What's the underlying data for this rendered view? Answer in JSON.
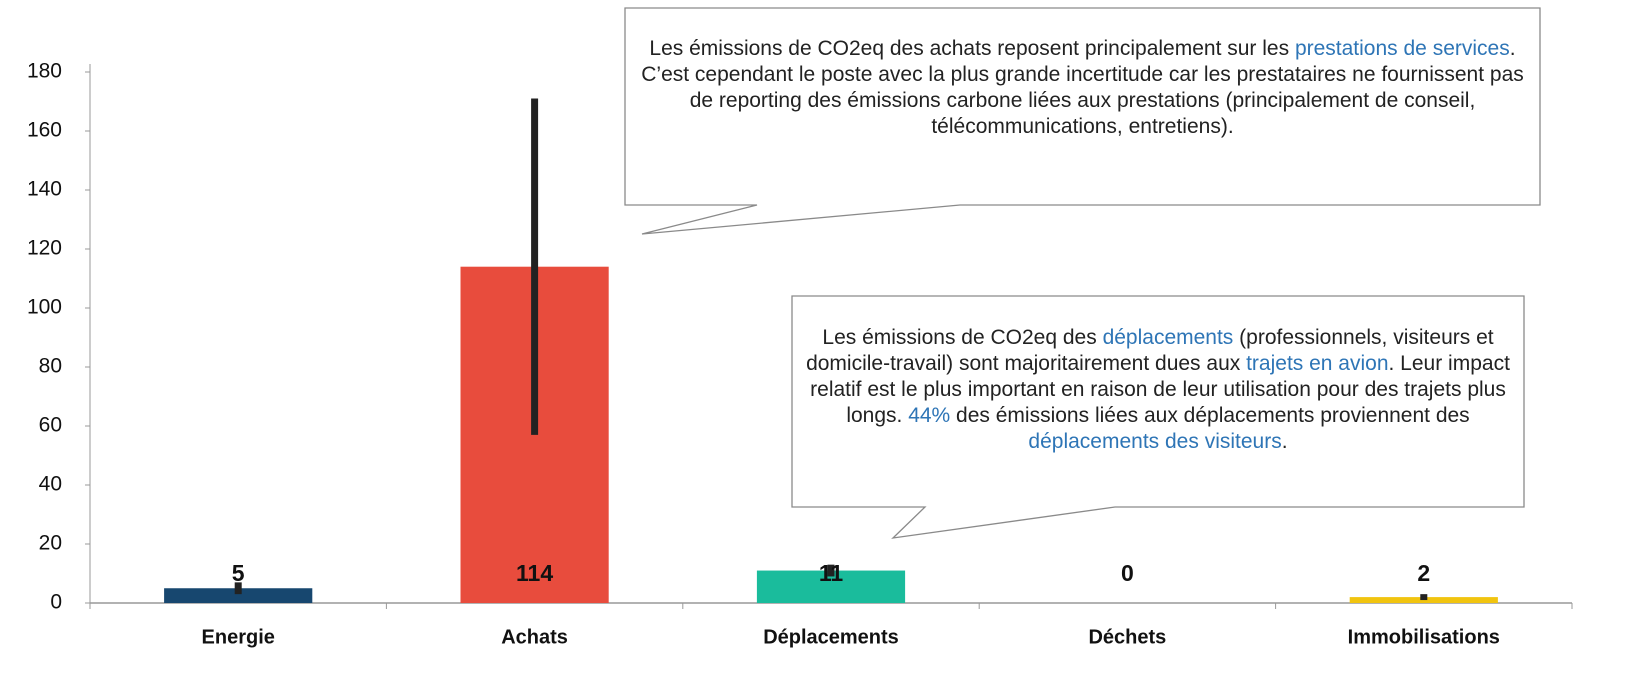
{
  "chart_data": {
    "type": "bar",
    "categories": [
      "Energie",
      "Achats",
      "Déplacements",
      "Déchets",
      "Immobilisations"
    ],
    "values": [
      5,
      114,
      11,
      0,
      2
    ],
    "errors": [
      2,
      57,
      2,
      0,
      1
    ],
    "colors": [
      "#17476f",
      "#e84c3d",
      "#1abc9c",
      "#999999",
      "#f1c40f"
    ],
    "error_color": "#222222",
    "ylim": [
      0,
      180
    ],
    "yticks": [
      0,
      20,
      40,
      60,
      80,
      100,
      120,
      140,
      160,
      180
    ],
    "annotations": [
      {
        "segments": [
          {
            "text": "Les émissions de CO2eq des achats reposent principalement sur les "
          },
          {
            "text": "prestations de services",
            "color": "#2e75b6"
          },
          {
            "text": ". C’est cependant le poste avec la plus grande incertitude car les prestataires ne fournissent pas de reporting des émissions carbone liées aux prestations (principalement de conseil,  télécommunications, entretiens)."
          }
        ]
      },
      {
        "segments": [
          {
            "text": "Les émissions de CO2eq des "
          },
          {
            "text": "déplacements",
            "color": "#2e75b6"
          },
          {
            "text": " (professionnels, visiteurs et domicile-travail) sont majoritairement dues aux "
          },
          {
            "text": "trajets en avion",
            "color": "#2e75b6"
          },
          {
            "text": ". Leur impact relatif est le plus important en raison de leur utilisation pour des trajets plus longs. "
          },
          {
            "text": "44%",
            "color": "#2e75b6"
          },
          {
            "text": " des émissions liées aux déplacements proviennent des "
          },
          {
            "text": "déplacements des visiteurs",
            "color": "#2e75b6"
          },
          {
            "text": "."
          }
        ]
      }
    ]
  }
}
